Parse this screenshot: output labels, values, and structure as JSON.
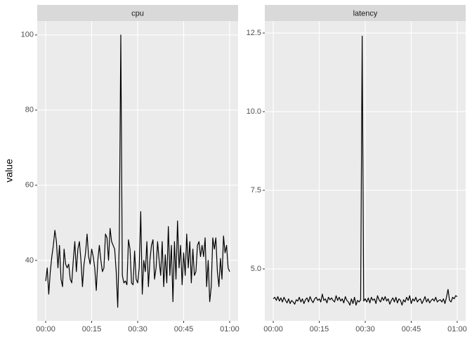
{
  "chart_data": [
    {
      "type": "line",
      "title": "cpu",
      "ylabel": "value",
      "color": "#000000",
      "grid": true,
      "x": [
        0,
        0.5,
        1,
        1.5,
        2,
        2.5,
        3,
        3.5,
        4,
        4.5,
        5,
        5.5,
        6,
        6.5,
        7,
        7.5,
        8,
        8.5,
        9,
        9.5,
        10,
        10.5,
        11,
        11.5,
        12,
        12.5,
        13,
        13.5,
        14,
        14.5,
        15,
        15.5,
        16,
        16.5,
        17,
        17.5,
        18,
        18.5,
        19,
        19.5,
        20,
        20.5,
        21,
        21.5,
        22,
        22.5,
        23,
        23.5,
        24,
        24.5,
        25,
        25.5,
        26,
        26.5,
        27,
        27.5,
        28,
        28.5,
        29,
        29.5,
        30,
        30.5,
        31,
        31.5,
        32,
        32.5,
        33,
        33.5,
        34,
        34.5,
        35,
        35.5,
        36,
        36.5,
        37,
        37.5,
        38,
        38.5,
        39,
        39.5,
        40,
        40.5,
        41,
        41.5,
        42,
        42.5,
        43,
        43.5,
        44,
        44.5,
        45,
        45.5,
        46,
        46.5,
        47,
        47.5,
        48,
        48.5,
        49,
        49.5,
        50,
        50.5,
        51,
        51.5,
        52,
        52.5,
        53,
        53.5,
        54,
        54.5,
        55,
        55.5,
        56,
        56.5,
        57,
        57.5,
        58,
        58.5,
        59,
        59.5,
        60
      ],
      "values": [
        34.5,
        38,
        31,
        37,
        41,
        44,
        48,
        45,
        38,
        44,
        35,
        33,
        43,
        39,
        38,
        39,
        35,
        34,
        40,
        45,
        37,
        43,
        45,
        40,
        33,
        39,
        42,
        47,
        41,
        39,
        43,
        41,
        38,
        32,
        40,
        44,
        40,
        37,
        38,
        47,
        46,
        40,
        48.5,
        45,
        44,
        43,
        37,
        27.5,
        45,
        100,
        36,
        34,
        34.5,
        33.5,
        45.5,
        43,
        34,
        33.5,
        42.5,
        35,
        34,
        38,
        53,
        31,
        40,
        37,
        45,
        33,
        40,
        44,
        45.5,
        35,
        38,
        45,
        40,
        36,
        45,
        33,
        41.5,
        34,
        49,
        36,
        44,
        29,
        45,
        35,
        50.5,
        38,
        44,
        33.5,
        42,
        36,
        47,
        38,
        45,
        34,
        43,
        36,
        37,
        44,
        45,
        41,
        44,
        41,
        46,
        33,
        40,
        29,
        33,
        46,
        43,
        46,
        37,
        33,
        40.5,
        35,
        46.5,
        42,
        44,
        38,
        37
      ],
      "xlim": [
        -2.76,
        62.76
      ],
      "ylim": [
        23.9,
        103.7
      ],
      "xticks": [
        {
          "value": 0,
          "label": "00:00"
        },
        {
          "value": 15,
          "label": "00:15"
        },
        {
          "value": 30,
          "label": "00:30"
        },
        {
          "value": 45,
          "label": "00:45"
        },
        {
          "value": 60,
          "label": "01:00"
        }
      ],
      "yticks": [
        40,
        60,
        80,
        100
      ]
    },
    {
      "type": "line",
      "title": "latency",
      "color": "#000000",
      "grid": true,
      "x": [
        0,
        0.5,
        1,
        1.5,
        2,
        2.5,
        3,
        3.5,
        4,
        4.5,
        5,
        5.5,
        6,
        6.5,
        7,
        7.5,
        8,
        8.5,
        9,
        9.5,
        10,
        10.5,
        11,
        11.5,
        12,
        12.5,
        13,
        13.5,
        14,
        14.5,
        15,
        15.5,
        16,
        16.5,
        17,
        17.5,
        18,
        18.5,
        19,
        19.5,
        20,
        20.5,
        21,
        21.5,
        22,
        22.5,
        23,
        23.5,
        24,
        24.5,
        25,
        25.5,
        26,
        26.5,
        27,
        27.5,
        28,
        28.5,
        29,
        29.5,
        30,
        30.5,
        31,
        31.5,
        32,
        32.5,
        33,
        33.5,
        34,
        34.5,
        35,
        35.5,
        36,
        36.5,
        37,
        37.5,
        38,
        38.5,
        39,
        39.5,
        40,
        40.5,
        41,
        41.5,
        42,
        42.5,
        43,
        43.5,
        44,
        44.5,
        45,
        45.5,
        46,
        46.5,
        47,
        47.5,
        48,
        48.5,
        49,
        49.5,
        50,
        50.5,
        51,
        51.5,
        52,
        52.5,
        53,
        53.5,
        54,
        54.5,
        55,
        55.5,
        56,
        56.5,
        57,
        57.5,
        58,
        58.5,
        59,
        59.5,
        60
      ],
      "values": [
        4.05,
        4.1,
        4.0,
        4.12,
        3.98,
        4.08,
        3.95,
        4.1,
        4.0,
        3.92,
        4.05,
        3.9,
        4.0,
        3.95,
        3.88,
        4.02,
        3.98,
        4.1,
        3.95,
        4.05,
        3.9,
        4.02,
        4.08,
        3.95,
        4.12,
        4.0,
        3.93,
        4.05,
        4.1,
        4.0,
        4.05,
        3.95,
        4.2,
        4.0,
        4.05,
        3.92,
        4.1,
        4.02,
        4.08,
        4.0,
        3.95,
        4.15,
        4.0,
        4.1,
        3.98,
        4.05,
        3.92,
        4.12,
        4.0,
        3.95,
        3.85,
        4.05,
        3.9,
        4.1,
        3.85,
        4.0,
        3.95,
        4.02,
        12.4,
        3.98,
        4.05,
        3.95,
        4.08,
        3.92,
        4.1,
        4.0,
        4.05,
        3.9,
        4.15,
        4.02,
        3.95,
        4.1,
        4.0,
        4.12,
        3.98,
        4.05,
        3.88,
        4.0,
        4.08,
        3.95,
        4.1,
        3.92,
        4.05,
        4.0,
        3.85,
        4.02,
        3.95,
        4.1,
        4.0,
        4.15,
        3.9,
        4.05,
        3.98,
        4.1,
        3.95,
        4.02,
        4.05,
        3.9,
        4.0,
        4.12,
        3.95,
        4.05,
        3.92,
        4.0,
        4.05,
        3.98,
        4.1,
        3.95,
        4.0,
        4.02,
        3.95,
        4.05,
        3.9,
        4.1,
        4.35,
        4.0,
        3.95,
        4.1,
        4.05,
        4.15,
        4.12
      ],
      "xlim": [
        -2.76,
        62.76
      ],
      "ylim": [
        3.35,
        12.88
      ],
      "xticks": [
        {
          "value": 0,
          "label": "00:00"
        },
        {
          "value": 15,
          "label": "00:15"
        },
        {
          "value": 30,
          "label": "00:30"
        },
        {
          "value": 45,
          "label": "00:45"
        },
        {
          "value": 60,
          "label": "01:00"
        }
      ],
      "yticks": [
        {
          "value": 5,
          "label": "5.0"
        },
        {
          "value": 7.5,
          "label": "7.5"
        },
        {
          "value": 10,
          "label": "10.0"
        },
        {
          "value": 12.5,
          "label": "12.5"
        }
      ]
    }
  ]
}
